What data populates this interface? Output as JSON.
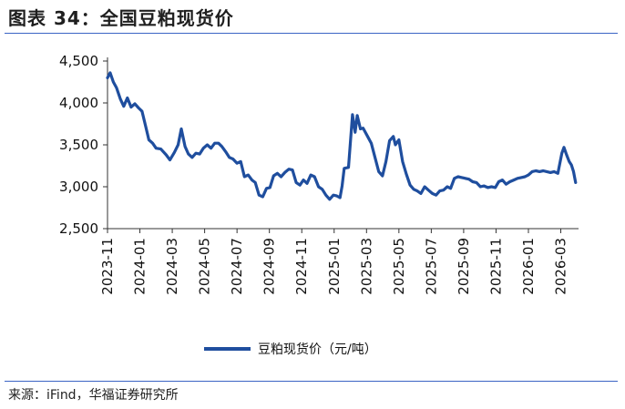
{
  "header": {
    "title": "图表 34：全国豆粕现货价"
  },
  "footer": {
    "source_label": "来源：",
    "source_text": "iFind，华福证券研究所"
  },
  "chart_data": {
    "type": "line",
    "title": "",
    "xlabel": "",
    "ylabel": "",
    "ylim": [
      2500,
      4500
    ],
    "yticks": [
      2500,
      3000,
      3500,
      4000,
      4500
    ],
    "ytick_labels": [
      "2,500",
      "3,000",
      "3,500",
      "4,000",
      "4,500"
    ],
    "xtick_labels": [
      "2023-11",
      "2024-01",
      "2024-03",
      "2024-05",
      "2024-07",
      "2024-09",
      "2024-11",
      "2025-01",
      "2025-03",
      "2025-05",
      "2025-07",
      "2025-09",
      "2025-11",
      "2026-01",
      "2026-03"
    ],
    "legend_position": "bottom",
    "grid": false,
    "series": [
      {
        "name": "豆粕现货价（元/吨）",
        "color": "#1f4e9e",
        "points": [
          [
            "2023-11-01",
            4300
          ],
          [
            "2023-11-06",
            4360
          ],
          [
            "2023-11-12",
            4250
          ],
          [
            "2023-11-18",
            4180
          ],
          [
            "2023-11-25",
            4050
          ],
          [
            "2023-12-01",
            3960
          ],
          [
            "2023-12-08",
            4060
          ],
          [
            "2023-12-15",
            3950
          ],
          [
            "2023-12-22",
            3990
          ],
          [
            "2023-12-29",
            3940
          ],
          [
            "2024-01-05",
            3900
          ],
          [
            "2024-01-12",
            3720
          ],
          [
            "2024-01-18",
            3560
          ],
          [
            "2024-01-25",
            3520
          ],
          [
            "2024-02-01",
            3460
          ],
          [
            "2024-02-10",
            3450
          ],
          [
            "2024-02-20",
            3380
          ],
          [
            "2024-02-27",
            3320
          ],
          [
            "2024-03-05",
            3410
          ],
          [
            "2024-03-12",
            3500
          ],
          [
            "2024-03-18",
            3690
          ],
          [
            "2024-03-25",
            3480
          ],
          [
            "2024-04-01",
            3390
          ],
          [
            "2024-04-08",
            3350
          ],
          [
            "2024-04-15",
            3400
          ],
          [
            "2024-04-22",
            3390
          ],
          [
            "2024-04-29",
            3460
          ],
          [
            "2024-05-06",
            3500
          ],
          [
            "2024-05-13",
            3460
          ],
          [
            "2024-05-20",
            3520
          ],
          [
            "2024-05-27",
            3520
          ],
          [
            "2024-06-03",
            3480
          ],
          [
            "2024-06-10",
            3420
          ],
          [
            "2024-06-17",
            3350
          ],
          [
            "2024-06-24",
            3330
          ],
          [
            "2024-07-01",
            3280
          ],
          [
            "2024-07-08",
            3300
          ],
          [
            "2024-07-15",
            3120
          ],
          [
            "2024-07-22",
            3140
          ],
          [
            "2024-07-29",
            3080
          ],
          [
            "2024-08-05",
            3050
          ],
          [
            "2024-08-12",
            2900
          ],
          [
            "2024-08-19",
            2880
          ],
          [
            "2024-08-26",
            2980
          ],
          [
            "2024-09-02",
            2990
          ],
          [
            "2024-09-09",
            3130
          ],
          [
            "2024-09-16",
            3160
          ],
          [
            "2024-09-23",
            3120
          ],
          [
            "2024-09-30",
            3170
          ],
          [
            "2024-10-07",
            3210
          ],
          [
            "2024-10-14",
            3200
          ],
          [
            "2024-10-21",
            3050
          ],
          [
            "2024-10-28",
            3020
          ],
          [
            "2024-11-04",
            3080
          ],
          [
            "2024-11-11",
            3040
          ],
          [
            "2024-11-18",
            3140
          ],
          [
            "2024-11-25",
            3120
          ],
          [
            "2024-12-02",
            3000
          ],
          [
            "2024-12-09",
            2970
          ],
          [
            "2024-12-16",
            2900
          ],
          [
            "2024-12-23",
            2850
          ],
          [
            "2024-12-30",
            2900
          ],
          [
            "2025-01-06",
            2890
          ],
          [
            "2025-01-12",
            2870
          ],
          [
            "2025-01-16",
            3010
          ],
          [
            "2025-01-20",
            3220
          ],
          [
            "2025-01-28",
            3230
          ],
          [
            "2025-02-05",
            3860
          ],
          [
            "2025-02-10",
            3650
          ],
          [
            "2025-02-14",
            3850
          ],
          [
            "2025-02-20",
            3690
          ],
          [
            "2025-02-25",
            3700
          ],
          [
            "2025-03-03",
            3600
          ],
          [
            "2025-03-10",
            3520
          ],
          [
            "2025-03-17",
            3350
          ],
          [
            "2025-03-24",
            3180
          ],
          [
            "2025-03-31",
            3130
          ],
          [
            "2025-04-07",
            3300
          ],
          [
            "2025-04-14",
            3550
          ],
          [
            "2025-04-21",
            3600
          ],
          [
            "2025-04-25",
            3500
          ],
          [
            "2025-05-01",
            3560
          ],
          [
            "2025-05-08",
            3300
          ],
          [
            "2025-05-15",
            3150
          ],
          [
            "2025-05-22",
            3020
          ],
          [
            "2025-05-29",
            2970
          ],
          [
            "2025-06-05",
            2950
          ],
          [
            "2025-06-12",
            2920
          ],
          [
            "2025-06-19",
            3000
          ],
          [
            "2025-06-26",
            2960
          ],
          [
            "2025-07-03",
            2920
          ],
          [
            "2025-07-10",
            2900
          ],
          [
            "2025-07-17",
            2950
          ],
          [
            "2025-07-24",
            2960
          ],
          [
            "2025-07-31",
            3000
          ],
          [
            "2025-08-07",
            2980
          ],
          [
            "2025-08-14",
            3100
          ],
          [
            "2025-08-21",
            3120
          ],
          [
            "2025-08-28",
            3110
          ],
          [
            "2025-09-04",
            3100
          ],
          [
            "2025-09-11",
            3090
          ],
          [
            "2025-09-18",
            3060
          ],
          [
            "2025-09-25",
            3050
          ],
          [
            "2025-10-02",
            3000
          ],
          [
            "2025-10-09",
            3010
          ],
          [
            "2025-10-16",
            2990
          ],
          [
            "2025-10-23",
            3000
          ],
          [
            "2025-10-30",
            2990
          ],
          [
            "2025-11-06",
            3060
          ],
          [
            "2025-11-13",
            3080
          ],
          [
            "2025-11-20",
            3030
          ],
          [
            "2025-11-27",
            3060
          ],
          [
            "2025-12-04",
            3080
          ],
          [
            "2025-12-11",
            3100
          ],
          [
            "2025-12-18",
            3110
          ],
          [
            "2025-12-25",
            3120
          ],
          [
            "2026-01-01",
            3140
          ],
          [
            "2026-01-08",
            3180
          ],
          [
            "2026-01-15",
            3190
          ],
          [
            "2026-01-22",
            3180
          ],
          [
            "2026-01-29",
            3190
          ],
          [
            "2026-02-05",
            3180
          ],
          [
            "2026-02-12",
            3170
          ],
          [
            "2026-02-19",
            3180
          ],
          [
            "2026-02-26",
            3160
          ],
          [
            "2026-03-03",
            3400
          ],
          [
            "2026-03-07",
            3470
          ],
          [
            "2026-03-12",
            3380
          ],
          [
            "2026-03-17",
            3300
          ],
          [
            "2026-03-21",
            3260
          ],
          [
            "2026-03-25",
            3180
          ],
          [
            "2026-03-29",
            3050
          ]
        ]
      }
    ]
  }
}
